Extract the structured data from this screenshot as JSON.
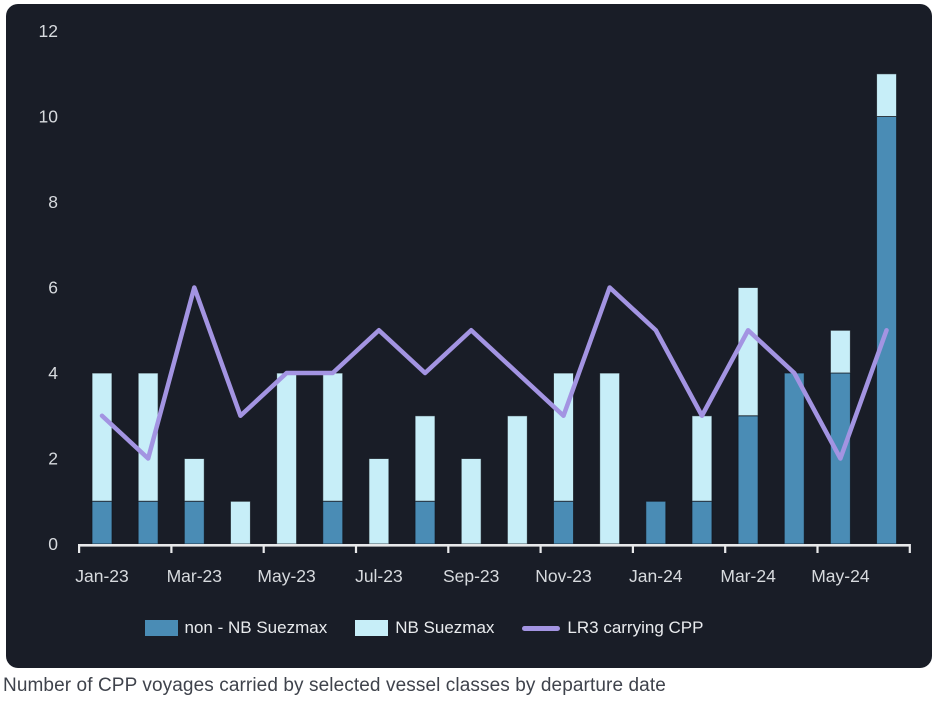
{
  "page": {
    "caption": "Number of CPP voyages carried by selected vessel classes by departure date"
  },
  "colors": {
    "page_background": "#ffffff",
    "card_background": "#191d27",
    "bar_non_nb_suezmax": "#4a8cb5",
    "bar_nb_suezmax": "#c7eef8",
    "line_lr3": "#a394e2",
    "bar_outline": "#12151d",
    "axis_line": "#e8e9eb",
    "axis_label_text": "#d7dade",
    "legend_text": "#e9ebee",
    "caption_text": "#3f434c"
  },
  "legend": {
    "items": [
      {
        "label": "non - NB Suezmax",
        "swatch": "bar",
        "color_key": "bar_non_nb_suezmax"
      },
      {
        "label": "NB Suezmax",
        "swatch": "bar",
        "color_key": "bar_nb_suezmax"
      },
      {
        "label": "LR3 carrying CPP",
        "swatch": "line",
        "color_key": "line_lr3"
      }
    ]
  },
  "chart_data": {
    "type": "bar",
    "subtype": "stacked-bars-with-line-overlay",
    "title": "",
    "xlabel": "",
    "ylabel": "",
    "grid": false,
    "legend_position": "bottom",
    "ylim": [
      0,
      12
    ],
    "y_ticks": [
      0,
      2,
      4,
      6,
      8,
      10,
      12
    ],
    "categories": [
      "Jan-23",
      "Feb-23",
      "Mar-23",
      "Apr-23",
      "May-23",
      "Jun-23",
      "Jul-23",
      "Aug-23",
      "Sep-23",
      "Oct-23",
      "Nov-23",
      "Dec-23",
      "Jan-24",
      "Feb-24",
      "Mar-24",
      "Apr-24",
      "May-24",
      "Jun-24"
    ],
    "x_tick_labels": [
      "Jan-23",
      "Mar-23",
      "May-23",
      "Jul-23",
      "Sep-23",
      "Nov-23",
      "Jan-24",
      "Mar-24",
      "May-24"
    ],
    "series": [
      {
        "name": "non - NB Suezmax",
        "type": "bar",
        "stack": "vessels",
        "values": [
          1,
          1,
          1,
          0,
          0,
          1,
          0,
          1,
          0,
          0,
          1,
          0,
          1,
          1,
          3,
          4,
          4,
          10
        ]
      },
      {
        "name": "NB Suezmax",
        "type": "bar",
        "stack": "vessels",
        "values": [
          3,
          3,
          1,
          1,
          4,
          3,
          2,
          2,
          2,
          3,
          3,
          4,
          0,
          2,
          3,
          0,
          1,
          1
        ]
      },
      {
        "name": "LR3 carrying CPP",
        "type": "line",
        "values": [
          3,
          2,
          6,
          3,
          4,
          4,
          5,
          4,
          5,
          4,
          3,
          6,
          5,
          3,
          5,
          4,
          2,
          5
        ]
      }
    ]
  }
}
